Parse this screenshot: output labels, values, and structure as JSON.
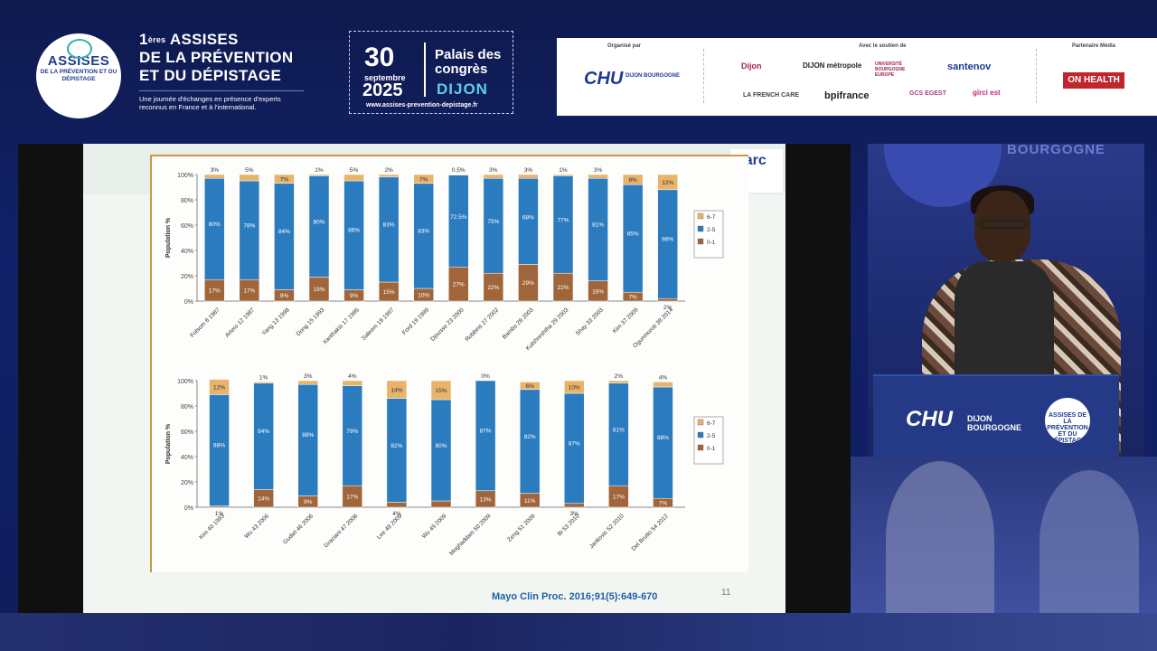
{
  "header": {
    "logo_name": "ASSISES",
    "logo_sub": "DE LA PRÉVENTION ET DU DÉPISTAGE",
    "title_num": "1",
    "title_sup": "ères",
    "title_line1": "ASSISES",
    "title_line2": "DE LA PRÉVENTION",
    "title_line3": "ET DU DÉPISTAGE",
    "subtitle": "Une journée d'échanges en présence d'experts reconnus en France et à l'international.",
    "day": "30",
    "month": "septembre",
    "year": "2025",
    "venue": "Palais des congrès",
    "city": "DIJON",
    "url": "www.assises-prevention-depistage.fr"
  },
  "sponsors": {
    "organized_by": "Organisé par",
    "support": "Avec le soutien de",
    "media": "Partenaire Média",
    "chu": "CHU",
    "chu_sub": "DIJON BOURGOGNE",
    "items": [
      "Dijon",
      "DIJON métropole",
      "UNIVERSITÉ BOURGOGNE EUROPE",
      "santenov",
      "LA FRENCH CARE",
      "bpifrance",
      "GCS EGEST",
      "girci est"
    ],
    "media_partner": "ON HEALTH"
  },
  "slide": {
    "logo": "parc",
    "citation": "Mayo Clin Proc. 2016;91(5):649-670",
    "page": "11"
  },
  "lectern": {
    "chu": "CHU",
    "chu_sub": "DIJON BOURGOGNE",
    "badge": "ASSISES DE LA PRÉVENTION ET DU DÉPISTAGE"
  },
  "camera": {
    "backdrop_word": "BOURGOGNE"
  },
  "chart_data": [
    {
      "type": "bar",
      "stacked": true,
      "ylabel": "Population %",
      "yticks": [
        "0%",
        "20%",
        "40%",
        "60%",
        "80%",
        "100%"
      ],
      "ylim": [
        0,
        100
      ],
      "categories": [
        "Folsom 8 1987",
        "Artero 12 1987",
        "Yang 13 1998",
        "Dong 15 1993",
        "Xanthakis 17 1995",
        "Saleem 18 1997",
        "Ford 19 1999",
        "Djousse 23 2000",
        "Robbins 27 2002",
        "Bambs 28 2003",
        "Kulshreshtha 29 2003",
        "Shay 33 2003",
        "Kim 37 2009",
        "Ogunmoroti 38 2014"
      ],
      "series": [
        {
          "name": "0-1",
          "color": "#a0653a",
          "values": [
            17,
            17,
            9,
            19,
            9,
            15,
            10,
            27,
            22,
            29,
            22,
            16,
            7,
            2
          ],
          "labels": [
            "17%",
            "17%",
            "9%",
            "19%",
            "9%",
            "15%",
            "10%",
            "27%",
            "22%",
            "29%",
            "22%",
            "16%",
            "7%",
            "2%"
          ]
        },
        {
          "name": "2-5",
          "color": "#2b7bbf",
          "values": [
            80,
            78,
            84,
            80,
            86,
            83,
            83,
            72.5,
            75,
            68,
            77,
            81,
            85,
            86
          ],
          "labels": [
            "80%",
            "78%",
            "84%",
            "80%",
            "86%",
            "83%",
            "83%",
            "72.5%",
            "75%",
            "68%",
            "77%",
            "81%",
            "85%",
            "86%"
          ]
        },
        {
          "name": "6-7",
          "color": "#e8b36a",
          "values": [
            3,
            5,
            7,
            1,
            5,
            2,
            7,
            0.5,
            3,
            3,
            1,
            3,
            8,
            12
          ],
          "labels": [
            "3%",
            "5%",
            "7%",
            "1%",
            "5%",
            "2%",
            "7%",
            "0.5%",
            "3%",
            "3%",
            "1%",
            "3%",
            "8%",
            "12%"
          ]
        }
      ],
      "legend": [
        "6-7",
        "2-5",
        "0-1"
      ],
      "legend_position": "right"
    },
    {
      "type": "bar",
      "stacked": true,
      "ylabel": "Population %",
      "yticks": [
        "0%",
        "20%",
        "40%",
        "60%",
        "80%",
        "100%"
      ],
      "ylim": [
        0,
        100
      ],
      "categories": [
        "Kim 40 1993",
        "Wu 43 2006",
        "Gudiel 46 2006",
        "Graciani 47 2008",
        "Lee 48 2009",
        "Wu 49 2009",
        "Moghaddam 50 2009",
        "Zeng 51 2009",
        "Bi 53 2010",
        "Jankovic 52 2010",
        "Del Brutto 54 2012"
      ],
      "series": [
        {
          "name": "0-1",
          "color": "#a0653a",
          "values": [
            1,
            14,
            9,
            17,
            4,
            5,
            13,
            11,
            3,
            17,
            7
          ],
          "labels": [
            "1%",
            "14%",
            "9%",
            "17%",
            "4%",
            "",
            "13%",
            "11%",
            "3%",
            "17%",
            "7%"
          ]
        },
        {
          "name": "2-5",
          "color": "#2b7bbf",
          "values": [
            88,
            84,
            88,
            79,
            82,
            80,
            87,
            82,
            87,
            81,
            88
          ],
          "labels": [
            "88%",
            "84%",
            "88%",
            "79%",
            "82%",
            "80%",
            "87%",
            "82%",
            "87%",
            "81%",
            "88%"
          ]
        },
        {
          "name": "6-7",
          "color": "#e8b36a",
          "values": [
            12,
            1,
            3,
            4,
            14,
            15,
            0,
            6,
            10,
            2,
            4
          ],
          "labels": [
            "12%",
            "1%",
            "3%",
            "4%",
            "14%",
            "15%",
            "0%",
            "6%",
            "10%",
            "2%",
            "4%"
          ]
        }
      ],
      "legend": [
        "6-7",
        "2-5",
        "0-1"
      ],
      "legend_position": "right"
    }
  ]
}
